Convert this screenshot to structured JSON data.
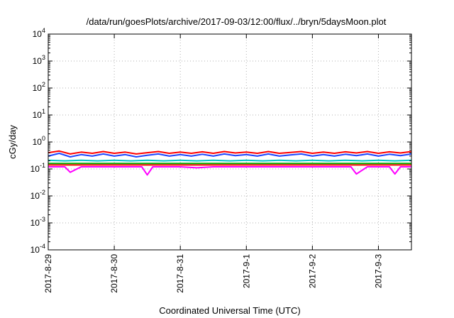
{
  "chart_data": {
    "type": "line",
    "title": "/data/run/goesPlots/archive/2017-09-03/12:00/flux/../bryn/5daysMoon.plot",
    "xlabel": "Coordinated Universal Time (UTC)",
    "ylabel": "cGy/day",
    "x_range": [
      "2017-08-29T00:00",
      "2017-09-03T12:00"
    ],
    "x_ticks": [
      {
        "date": "2017-08-29T00:00",
        "label": "2017-8-29"
      },
      {
        "date": "2017-08-30T00:00",
        "label": "2017-8-30"
      },
      {
        "date": "2017-08-31T00:00",
        "label": "2017-8-31"
      },
      {
        "date": "2017-09-01T00:00",
        "label": "2017-9-1"
      },
      {
        "date": "2017-09-02T00:00",
        "label": "2017-9-2"
      },
      {
        "date": "2017-09-03T00:00",
        "label": "2017-9-3"
      }
    ],
    "y_scale": "log",
    "ylim": [
      0.0001,
      10000
    ],
    "y_ticks": [
      {
        "base": "10",
        "exp": "-4",
        "value": 0.0001
      },
      {
        "base": "10",
        "exp": "-3",
        "value": 0.001
      },
      {
        "base": "10",
        "exp": "-2",
        "value": 0.01
      },
      {
        "base": "10",
        "exp": "-1",
        "value": 0.1
      },
      {
        "base": "10",
        "exp": "0",
        "value": 1
      },
      {
        "base": "10",
        "exp": "1",
        "value": 10
      },
      {
        "base": "10",
        "exp": "2",
        "value": 100
      },
      {
        "base": "10",
        "exp": "3",
        "value": 1000
      },
      {
        "base": "10",
        "exp": "4",
        "value": 10000
      }
    ],
    "grid": true,
    "legend": "none",
    "series": [
      {
        "color": "#ff00ff",
        "x": [
          "2017-08-29T00:00",
          "2017-08-29T06:00",
          "2017-08-29T08:00",
          "2017-08-29T12:00",
          "2017-08-29T18:00",
          "2017-08-30T00:00",
          "2017-08-30T06:00",
          "2017-08-30T10:00",
          "2017-08-30T12:00",
          "2017-08-30T14:00",
          "2017-08-30T18:00",
          "2017-08-31T00:00",
          "2017-08-31T06:00",
          "2017-08-31T12:00",
          "2017-08-31T18:00",
          "2017-09-01T00:00",
          "2017-09-01T06:00",
          "2017-09-01T12:00",
          "2017-09-01T18:00",
          "2017-09-02T00:00",
          "2017-09-02T06:00",
          "2017-09-02T12:00",
          "2017-09-02T14:00",
          "2017-09-02T16:00",
          "2017-09-02T20:00",
          "2017-09-03T00:00",
          "2017-09-03T04:00",
          "2017-09-03T06:00",
          "2017-09-03T08:00",
          "2017-09-03T12:00"
        ],
        "values": [
          0.12,
          0.12,
          0.075,
          0.12,
          0.12,
          0.12,
          0.12,
          0.12,
          0.06,
          0.12,
          0.12,
          0.12,
          0.11,
          0.12,
          0.12,
          0.12,
          0.12,
          0.12,
          0.12,
          0.12,
          0.12,
          0.12,
          0.12,
          0.065,
          0.12,
          0.12,
          0.12,
          0.065,
          0.12,
          0.12
        ]
      },
      {
        "color": "#ff0000",
        "x": [
          "2017-08-29T00:00",
          "2017-08-29T06:00",
          "2017-08-29T12:00",
          "2017-08-29T18:00",
          "2017-08-30T00:00",
          "2017-08-30T06:00",
          "2017-08-30T12:00",
          "2017-08-30T18:00",
          "2017-08-31T00:00",
          "2017-08-31T06:00",
          "2017-08-31T12:00",
          "2017-08-31T18:00",
          "2017-09-01T00:00",
          "2017-09-01T06:00",
          "2017-09-01T12:00",
          "2017-09-01T18:00",
          "2017-09-02T00:00",
          "2017-09-02T06:00",
          "2017-09-02T12:00",
          "2017-09-02T18:00",
          "2017-09-03T00:00",
          "2017-09-03T06:00",
          "2017-09-03T12:00"
        ],
        "values": [
          0.14,
          0.14,
          0.14,
          0.14,
          0.14,
          0.14,
          0.14,
          0.14,
          0.14,
          0.14,
          0.14,
          0.14,
          0.14,
          0.14,
          0.14,
          0.14,
          0.14,
          0.14,
          0.14,
          0.14,
          0.14,
          0.14,
          0.14
        ]
      },
      {
        "color": "#00b000",
        "x": [
          "2017-08-29T00:00",
          "2017-08-29T12:00",
          "2017-08-30T00:00",
          "2017-08-30T12:00",
          "2017-08-31T00:00",
          "2017-08-31T12:00",
          "2017-09-01T00:00",
          "2017-09-01T12:00",
          "2017-09-02T00:00",
          "2017-09-02T12:00",
          "2017-09-03T00:00",
          "2017-09-03T12:00"
        ],
        "values": [
          0.16,
          0.16,
          0.16,
          0.16,
          0.16,
          0.16,
          0.16,
          0.16,
          0.16,
          0.16,
          0.16,
          0.16
        ]
      },
      {
        "color": "#00c8c8",
        "x": [
          "2017-08-29T00:00",
          "2017-08-29T06:00",
          "2017-08-29T12:00",
          "2017-08-29T18:00",
          "2017-08-30T00:00",
          "2017-08-30T06:00",
          "2017-08-30T12:00",
          "2017-08-30T18:00",
          "2017-08-31T00:00",
          "2017-08-31T06:00",
          "2017-08-31T12:00",
          "2017-08-31T18:00",
          "2017-09-01T00:00",
          "2017-09-01T06:00",
          "2017-09-01T12:00",
          "2017-09-01T18:00",
          "2017-09-02T00:00",
          "2017-09-02T06:00",
          "2017-09-02T12:00",
          "2017-09-02T18:00",
          "2017-09-03T00:00",
          "2017-09-03T06:00",
          "2017-09-03T12:00"
        ],
        "values": [
          0.21,
          0.2,
          0.21,
          0.2,
          0.21,
          0.2,
          0.21,
          0.2,
          0.21,
          0.2,
          0.21,
          0.2,
          0.21,
          0.2,
          0.21,
          0.2,
          0.21,
          0.2,
          0.21,
          0.2,
          0.21,
          0.2,
          0.21
        ]
      },
      {
        "color": "#1e46ff",
        "x": [
          "2017-08-29T00:00",
          "2017-08-29T04:00",
          "2017-08-29T08:00",
          "2017-08-29T12:00",
          "2017-08-29T16:00",
          "2017-08-29T20:00",
          "2017-08-30T00:00",
          "2017-08-30T04:00",
          "2017-08-30T08:00",
          "2017-08-30T12:00",
          "2017-08-30T16:00",
          "2017-08-30T20:00",
          "2017-08-31T00:00",
          "2017-08-31T04:00",
          "2017-08-31T08:00",
          "2017-08-31T12:00",
          "2017-08-31T16:00",
          "2017-08-31T20:00",
          "2017-09-01T00:00",
          "2017-09-01T04:00",
          "2017-09-01T08:00",
          "2017-09-01T12:00",
          "2017-09-01T16:00",
          "2017-09-01T20:00",
          "2017-09-02T00:00",
          "2017-09-02T04:00",
          "2017-09-02T08:00",
          "2017-09-02T12:00",
          "2017-09-02T16:00",
          "2017-09-02T20:00",
          "2017-09-03T00:00",
          "2017-09-03T04:00",
          "2017-09-03T08:00",
          "2017-09-03T12:00"
        ],
        "values": [
          0.3,
          0.38,
          0.28,
          0.34,
          0.3,
          0.36,
          0.3,
          0.34,
          0.28,
          0.32,
          0.36,
          0.3,
          0.34,
          0.3,
          0.35,
          0.3,
          0.36,
          0.31,
          0.34,
          0.3,
          0.36,
          0.3,
          0.33,
          0.36,
          0.3,
          0.34,
          0.3,
          0.35,
          0.31,
          0.36,
          0.3,
          0.35,
          0.31,
          0.36
        ]
      },
      {
        "color": "#ff0000",
        "x": [
          "2017-08-29T00:00",
          "2017-08-29T04:00",
          "2017-08-29T08:00",
          "2017-08-29T12:00",
          "2017-08-29T16:00",
          "2017-08-29T20:00",
          "2017-08-30T00:00",
          "2017-08-30T04:00",
          "2017-08-30T08:00",
          "2017-08-30T12:00",
          "2017-08-30T16:00",
          "2017-08-30T20:00",
          "2017-08-31T00:00",
          "2017-08-31T04:00",
          "2017-08-31T08:00",
          "2017-08-31T12:00",
          "2017-08-31T16:00",
          "2017-08-31T20:00",
          "2017-09-01T00:00",
          "2017-09-01T04:00",
          "2017-09-01T08:00",
          "2017-09-01T12:00",
          "2017-09-01T16:00",
          "2017-09-01T20:00",
          "2017-09-02T00:00",
          "2017-09-02T04:00",
          "2017-09-02T08:00",
          "2017-09-02T12:00",
          "2017-09-02T16:00",
          "2017-09-02T20:00",
          "2017-09-03T00:00",
          "2017-09-03T04:00",
          "2017-09-03T08:00",
          "2017-09-03T12:00"
        ],
        "values": [
          0.4,
          0.46,
          0.36,
          0.42,
          0.38,
          0.44,
          0.38,
          0.42,
          0.36,
          0.4,
          0.44,
          0.38,
          0.42,
          0.38,
          0.43,
          0.38,
          0.44,
          0.39,
          0.42,
          0.38,
          0.44,
          0.38,
          0.41,
          0.44,
          0.38,
          0.42,
          0.38,
          0.43,
          0.39,
          0.44,
          0.38,
          0.43,
          0.39,
          0.44
        ]
      }
    ]
  }
}
